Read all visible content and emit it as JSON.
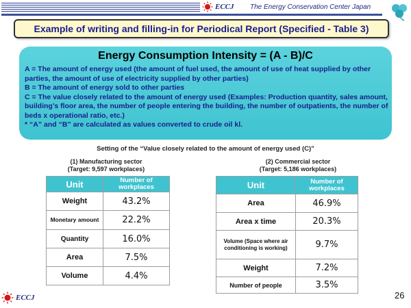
{
  "header": {
    "logo_text": "ECCJ",
    "org_name": "The Energy Conservation Center Japan"
  },
  "title": "Example of writing and filling-in for Periodical Report (Specified - Table 3)",
  "formula": "Energy Consumption Intensity = (A - B)/C",
  "definitions": {
    "a": "A = The amount of energy used (the amount of fuel used, the amount of use of heat supplied by other parties, the amount of use of electricity supplied by other parties)",
    "b": "B = The amount of energy sold to other parties",
    "c": "C = The value closely related to the amount of energy used (Examples: Production quantity, sales amount, building’s floor area, the number of people entering the building, the number of outpatients, the number of beds x operational ratio, etc.)",
    "note": "* “A” and “B” are calculated as values converted to crude oil kl."
  },
  "setting_title": "Setting of the “Value closely related to the amount of energy used (C)”",
  "manufacturing": {
    "title": "(1) Manufacturing sector",
    "target": "(Target: 9,597 workplaces)",
    "col_unit": "Unit",
    "col_count": "Number of workplaces",
    "rows": [
      {
        "unit": "Weight",
        "value": "43.2%"
      },
      {
        "unit": "Monetary amount",
        "value": "22.2%"
      },
      {
        "unit": "Quantity",
        "value": "16.0%"
      },
      {
        "unit": "Area",
        "value": "7.5%"
      },
      {
        "unit": "Volume",
        "value": "4.4%"
      }
    ]
  },
  "commercial": {
    "title": "(2) Commercial sector",
    "target": "(Target: 5,186 workplaces)",
    "col_unit": "Unit",
    "col_count": "Number of workplaces",
    "rows": [
      {
        "unit": "Area",
        "value": "46.9%"
      },
      {
        "unit": "Area x time",
        "value": "20.3%"
      },
      {
        "unit": "Volume (Space where air conditioning is working)",
        "value": "9.7%"
      },
      {
        "unit": "Weight",
        "value": "7.2%"
      },
      {
        "unit": "Number of people",
        "value": "3.5%"
      }
    ]
  },
  "footer": {
    "logo_text": "ECCJ",
    "page_number": "26"
  },
  "colors": {
    "panel": "#3fc3d0",
    "title_bg": "#fff8cc",
    "text_blue": "#1a1e8c"
  }
}
